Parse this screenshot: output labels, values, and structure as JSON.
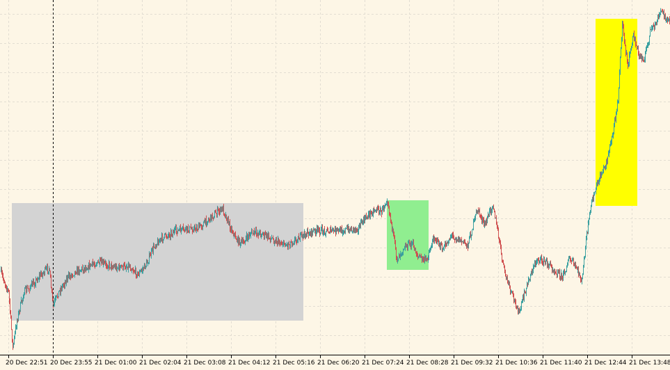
{
  "chart_data": {
    "type": "candlestick",
    "title": "",
    "xlabel": "",
    "ylabel": "",
    "ylim": [
      0,
      532
    ],
    "grid": true,
    "x_tick_labels": [
      "20 Dec 22:51",
      "20 Dec 23:55",
      "21 Dec 01:00",
      "21 Dec 02:04",
      "21 Dec 03:08",
      "21 Dec 04:12",
      "21 Dec 05:16",
      "21 Dec 06:20",
      "21 Dec 07:24",
      "21 Dec 08:28",
      "21 Dec 09:32",
      "21 Dec 10:36",
      "21 Dec 11:40",
      "21 Dec 12:44",
      "21 Dec 13:48"
    ],
    "price_path": [
      [
        0,
        390
      ],
      [
        12,
        420
      ],
      [
        18,
        500
      ],
      [
        24,
        460
      ],
      [
        34,
        420
      ],
      [
        46,
        410
      ],
      [
        58,
        395
      ],
      [
        70,
        385
      ],
      [
        76,
        440
      ],
      [
        84,
        420
      ],
      [
        96,
        400
      ],
      [
        108,
        390
      ],
      [
        122,
        385
      ],
      [
        138,
        378
      ],
      [
        152,
        380
      ],
      [
        170,
        385
      ],
      [
        185,
        382
      ],
      [
        198,
        395
      ],
      [
        210,
        380
      ],
      [
        222,
        352
      ],
      [
        236,
        340
      ],
      [
        252,
        332
      ],
      [
        268,
        330
      ],
      [
        284,
        328
      ],
      [
        300,
        315
      ],
      [
        312,
        305
      ],
      [
        320,
        300
      ],
      [
        330,
        325
      ],
      [
        340,
        345
      ],
      [
        348,
        350
      ],
      [
        360,
        335
      ],
      [
        374,
        335
      ],
      [
        388,
        342
      ],
      [
        400,
        348
      ],
      [
        412,
        352
      ],
      [
        424,
        345
      ],
      [
        436,
        338
      ],
      [
        452,
        332
      ],
      [
        468,
        332
      ],
      [
        484,
        332
      ],
      [
        500,
        330
      ],
      [
        514,
        328
      ],
      [
        528,
        310
      ],
      [
        540,
        300
      ],
      [
        548,
        305
      ],
      [
        556,
        285
      ],
      [
        562,
        320
      ],
      [
        570,
        372
      ],
      [
        580,
        355
      ],
      [
        592,
        350
      ],
      [
        600,
        368
      ],
      [
        612,
        375
      ],
      [
        624,
        340
      ],
      [
        636,
        360
      ],
      [
        648,
        338
      ],
      [
        660,
        345
      ],
      [
        672,
        352
      ],
      [
        686,
        300
      ],
      [
        696,
        325
      ],
      [
        708,
        292
      ],
      [
        716,
        340
      ],
      [
        724,
        388
      ],
      [
        734,
        420
      ],
      [
        746,
        450
      ],
      [
        754,
        420
      ],
      [
        762,
        395
      ],
      [
        772,
        372
      ],
      [
        786,
        378
      ],
      [
        798,
        390
      ],
      [
        808,
        398
      ],
      [
        818,
        372
      ],
      [
        828,
        385
      ],
      [
        836,
        405
      ],
      [
        842,
        345
      ],
      [
        850,
        290
      ],
      [
        860,
        260
      ],
      [
        872,
        230
      ],
      [
        880,
        195
      ],
      [
        888,
        140
      ],
      [
        894,
        35
      ],
      [
        902,
        95
      ],
      [
        910,
        50
      ],
      [
        918,
        80
      ],
      [
        926,
        85
      ],
      [
        934,
        45
      ],
      [
        942,
        35
      ],
      [
        950,
        15
      ],
      [
        957,
        25
      ],
      [
        963,
        35
      ]
    ],
    "shaded_regions": [
      {
        "color": "#d3d3d3",
        "x1": 17,
        "x2": 436,
        "y1": 292,
        "y2": 461
      },
      {
        "color": "#90ee90",
        "x1": 556,
        "x2": 616,
        "y1": 288,
        "y2": 388
      },
      {
        "color": "#ffff00",
        "x1": 856,
        "x2": 916,
        "y1": 27,
        "y2": 296
      }
    ],
    "vertical_marker_x": 76
  }
}
